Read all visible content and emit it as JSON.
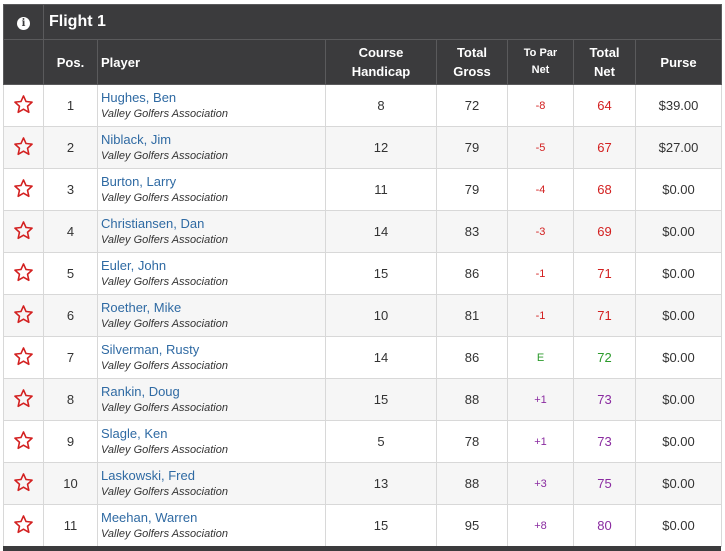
{
  "flight": {
    "title": "Flight 1",
    "info_icon": "info-icon"
  },
  "columns": {
    "pos": "Pos.",
    "player": "Player",
    "handicap_l1": "Course",
    "handicap_l2": "Handicap",
    "gross_l1": "Total",
    "gross_l2": "Gross",
    "topar_l1": "To Par",
    "topar_l2": "Net",
    "net_l1": "Total",
    "net_l2": "Net",
    "purse": "Purse"
  },
  "icons": {
    "favorite": "star-outline-icon"
  },
  "colors": {
    "header_bg": "#3b3b3d",
    "under_par": "#d32020",
    "even_par": "#2b9a2b",
    "over_par": "#8a2ba0",
    "player_link": "#2f6aa3",
    "star": "#d32020"
  },
  "rows": [
    {
      "pos": "1",
      "name": "Hughes, Ben",
      "club": "Valley Golfers Association",
      "handicap": "8",
      "gross": "72",
      "topar": "-8",
      "net": "64",
      "purse": "$39.00",
      "status": "under"
    },
    {
      "pos": "2",
      "name": "Niblack, Jim",
      "club": "Valley Golfers Association",
      "handicap": "12",
      "gross": "79",
      "topar": "-5",
      "net": "67",
      "purse": "$27.00",
      "status": "under"
    },
    {
      "pos": "3",
      "name": "Burton, Larry",
      "club": "Valley Golfers Association",
      "handicap": "11",
      "gross": "79",
      "topar": "-4",
      "net": "68",
      "purse": "$0.00",
      "status": "under"
    },
    {
      "pos": "4",
      "name": "Christiansen, Dan",
      "club": "Valley Golfers Association",
      "handicap": "14",
      "gross": "83",
      "topar": "-3",
      "net": "69",
      "purse": "$0.00",
      "status": "under"
    },
    {
      "pos": "5",
      "name": "Euler, John",
      "club": "Valley Golfers Association",
      "handicap": "15",
      "gross": "86",
      "topar": "-1",
      "net": "71",
      "purse": "$0.00",
      "status": "under"
    },
    {
      "pos": "6",
      "name": "Roether, Mike",
      "club": "Valley Golfers Association",
      "handicap": "10",
      "gross": "81",
      "topar": "-1",
      "net": "71",
      "purse": "$0.00",
      "status": "under"
    },
    {
      "pos": "7",
      "name": "Silverman, Rusty",
      "club": "Valley Golfers Association",
      "handicap": "14",
      "gross": "86",
      "topar": "E",
      "net": "72",
      "purse": "$0.00",
      "status": "even"
    },
    {
      "pos": "8",
      "name": "Rankin, Doug",
      "club": "Valley Golfers Association",
      "handicap": "15",
      "gross": "88",
      "topar": "+1",
      "net": "73",
      "purse": "$0.00",
      "status": "over"
    },
    {
      "pos": "9",
      "name": "Slagle, Ken",
      "club": "Valley Golfers Association",
      "handicap": "5",
      "gross": "78",
      "topar": "+1",
      "net": "73",
      "purse": "$0.00",
      "status": "over"
    },
    {
      "pos": "10",
      "name": "Laskowski, Fred",
      "club": "Valley Golfers Association",
      "handicap": "13",
      "gross": "88",
      "topar": "+3",
      "net": "75",
      "purse": "$0.00",
      "status": "over"
    },
    {
      "pos": "11",
      "name": "Meehan, Warren",
      "club": "Valley Golfers Association",
      "handicap": "15",
      "gross": "95",
      "topar": "+8",
      "net": "80",
      "purse": "$0.00",
      "status": "over"
    }
  ]
}
